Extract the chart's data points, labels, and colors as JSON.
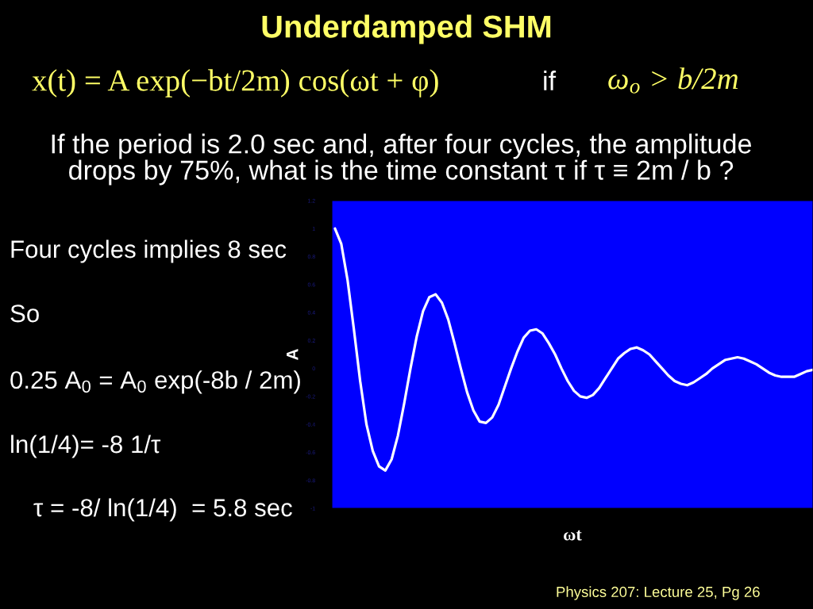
{
  "chart_data": {
    "type": "line",
    "title": "Underdamped SHM",
    "xlabel": "ωt",
    "ylabel": "A",
    "categories": [
      null,
      null,
      null,
      null,
      null,
      null,
      null,
      null,
      null,
      null,
      null,
      null,
      null,
      null,
      null,
      null,
      null,
      null,
      null,
      null,
      null,
      null,
      null,
      null,
      null,
      null,
      null,
      null,
      null,
      null,
      null,
      null,
      null,
      null,
      null,
      null,
      null,
      null,
      null,
      null,
      null,
      null,
      null,
      null,
      null,
      null,
      null,
      null,
      null,
      null,
      null,
      null,
      null,
      null,
      null,
      null,
      null,
      null,
      null,
      null,
      null,
      null,
      null,
      null,
      null,
      null,
      null,
      null,
      null,
      null,
      null,
      null,
      null,
      null,
      null,
      null,
      null
    ],
    "series": [
      {
        "color": "#ffffff",
        "values": [
          1.0,
          0.89,
          0.63,
          0.28,
          -0.09,
          -0.4,
          -0.59,
          -0.7,
          -0.73,
          -0.65,
          -0.48,
          -0.25,
          0.0,
          0.23,
          0.41,
          0.51,
          0.53,
          0.47,
          0.35,
          0.18,
          0.0,
          -0.17,
          -0.3,
          -0.38,
          -0.39,
          -0.35,
          -0.26,
          -0.13,
          0.0,
          0.12,
          0.22,
          0.27,
          0.28,
          0.25,
          0.18,
          0.1,
          0.0,
          -0.09,
          -0.16,
          -0.2,
          -0.21,
          -0.19,
          -0.14,
          -0.07,
          0.0,
          0.07,
          0.11,
          0.14,
          0.15,
          0.13,
          0.1,
          0.05,
          0.0,
          -0.05,
          -0.09,
          -0.11,
          -0.12,
          -0.1,
          -0.07,
          -0.04,
          0.0,
          0.03,
          0.06,
          0.07,
          0.08,
          0.07,
          0.05,
          0.03,
          0.0,
          -0.03,
          -0.05,
          -0.06,
          -0.06,
          -0.06,
          -0.04,
          -0.02,
          -0.01
        ]
      }
    ],
    "ylim": [
      -1,
      1.2
    ],
    "yticks": [
      -1,
      -0.8,
      -0.6,
      -0.4,
      -0.2,
      0,
      0.2,
      0.4,
      0.6,
      0.8,
      1,
      1.2
    ],
    "marker": "none",
    "line_style": "solid",
    "annotations": [
      "x(t) = A exp(−bt/2m) cos(ωt + φ)",
      "if",
      "ω$_{o}$ > b/2m",
      "If the period is 2.0 sec and, after four cycles, the amplitude\ndrops by 75%, what is the time constant τ if τ ≡ 2m / b ?",
      "Four cycles implies 8 sec",
      "So",
      "0.25 A$_{0}$ = A$_{0}$ exp(-8b / 2m)",
      "ln(1/4)= -8 1/τ",
      "τ = -8/ ln(1/4)  = 5.8 sec",
      "Physics 207: Lecture 25, Pg 26"
    ]
  }
}
